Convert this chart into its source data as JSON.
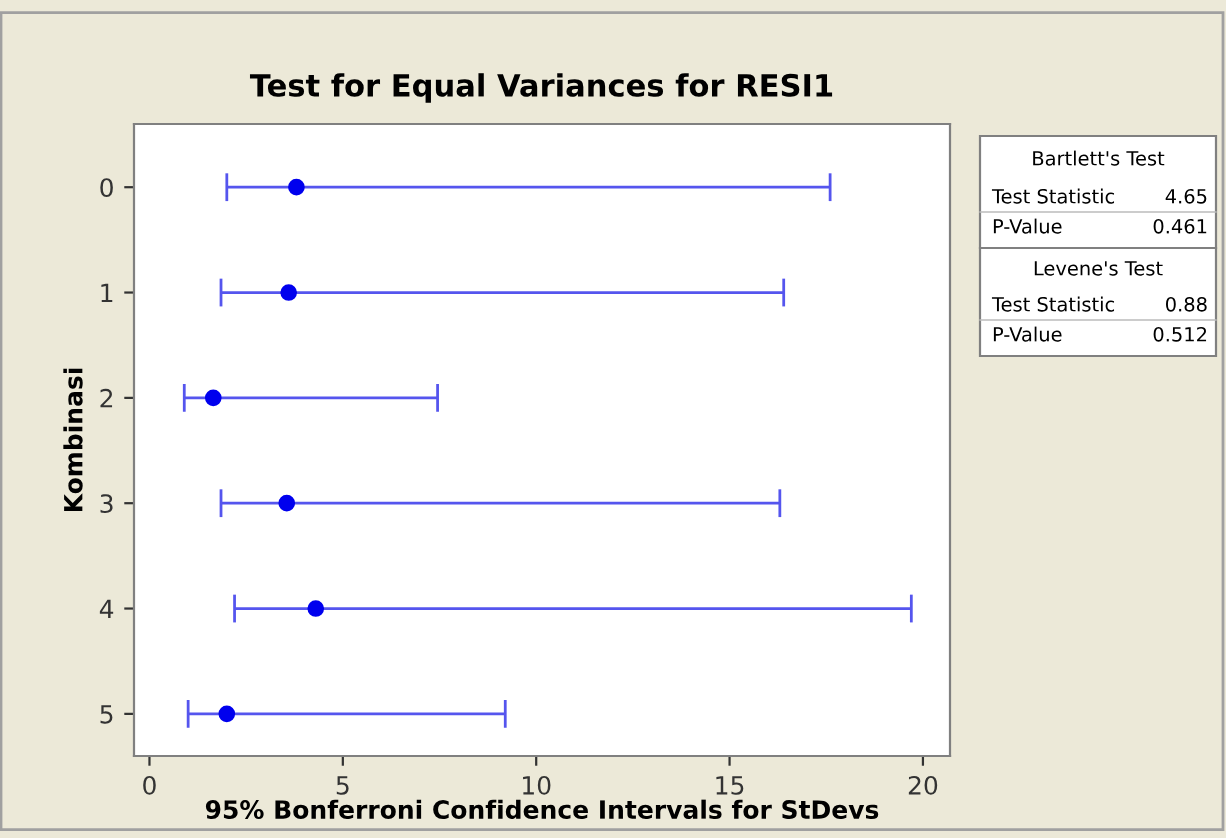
{
  "chart_data": {
    "type": "scatter",
    "orientation": "horizontal",
    "title": "Test for Equal Variances for RESI1",
    "xlabel": "95% Bonferroni Confidence Intervals for StDevs",
    "ylabel": "Kombinasi",
    "categories": [
      "0",
      "1",
      "2",
      "3",
      "4",
      "5"
    ],
    "series": [
      {
        "color": "#0000ee",
        "values": [
          3.8,
          3.6,
          1.65,
          3.55,
          4.3,
          2.0
        ],
        "errors": [
          [
            2.0,
            17.6
          ],
          [
            1.85,
            16.4
          ],
          [
            0.9,
            7.45
          ],
          [
            1.85,
            16.3
          ],
          [
            2.2,
            19.7
          ],
          [
            1.0,
            9.2
          ]
        ]
      }
    ],
    "xlim": [
      -0.4,
      20.7
    ],
    "xticks": [
      0,
      5,
      10,
      15,
      20
    ],
    "marker": "circle",
    "annotations": [
      "Bartlett's Test",
      "Test Statistic",
      "4.65",
      "P-Value",
      "0.461",
      "Levene's Test",
      "Test Statistic",
      "0.88",
      "P-Value",
      "0.512"
    ]
  }
}
